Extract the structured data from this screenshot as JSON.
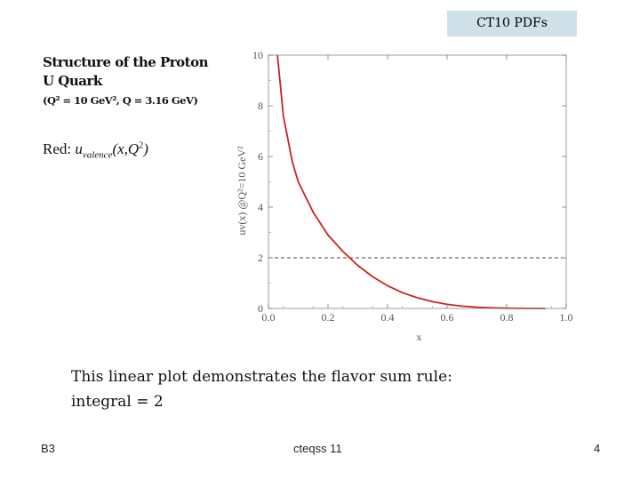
{
  "header": {
    "badge": "CT10 PDFs"
  },
  "title": {
    "line1": "Structure of the Proton",
    "line2": "U Quark",
    "line3": "(Q² = 10 GeV², Q = 3.16 GeV)"
  },
  "legend": {
    "prefix": "Red:",
    "func": "u",
    "sub": "valence",
    "args": "(x,Q",
    "sup": "2",
    "close": ")"
  },
  "note": {
    "line1": "This linear plot demonstrates the flavor sum rule:",
    "line2": "integral = 2"
  },
  "footer": {
    "left": "B3",
    "center": "cteqss 11",
    "right": "4"
  },
  "chart_data": {
    "type": "line",
    "title": "",
    "xlabel": "x",
    "ylabel": "uv(x)   @Q²=10 GeV²",
    "xlim": [
      0.0,
      1.0
    ],
    "ylim": [
      0,
      10
    ],
    "x_ticks": [
      "0.0",
      "0.2",
      "0.4",
      "0.6",
      "0.8",
      "1.0"
    ],
    "y_ticks": [
      "0",
      "2",
      "4",
      "6",
      "8",
      "10"
    ],
    "series": [
      {
        "color": "#cc2222",
        "x": [
          0.03,
          0.05,
          0.08,
          0.1,
          0.15,
          0.2,
          0.25,
          0.3,
          0.35,
          0.4,
          0.45,
          0.5,
          0.55,
          0.6,
          0.65,
          0.7,
          0.75,
          0.8,
          0.85,
          0.9,
          0.93
        ],
        "y": [
          10.0,
          7.6,
          5.8,
          5.0,
          3.8,
          2.9,
          2.25,
          1.7,
          1.25,
          0.9,
          0.62,
          0.42,
          0.27,
          0.16,
          0.09,
          0.05,
          0.025,
          0.01,
          0.004,
          0.001,
          0.0
        ]
      }
    ],
    "reference_line": {
      "y": 2,
      "style": "dashed",
      "color": "#444444"
    }
  }
}
